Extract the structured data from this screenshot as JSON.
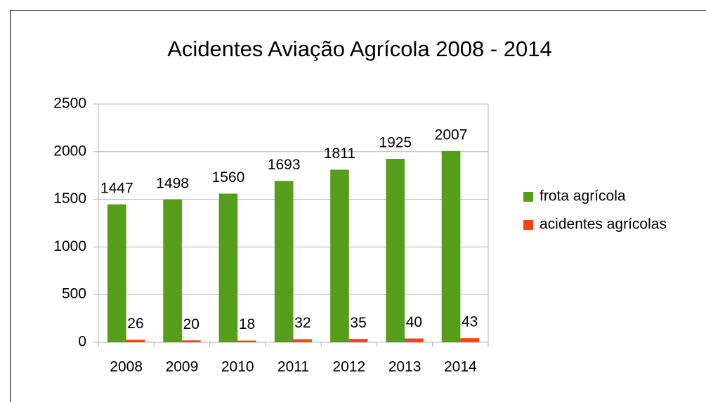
{
  "chart_data": {
    "type": "bar",
    "title": "Acidentes Aviação Agrícola 2008 - 2014",
    "categories": [
      "2008",
      "2009",
      "2010",
      "2011",
      "2012",
      "2013",
      "2014"
    ],
    "series": [
      {
        "name": "frota agrícola",
        "color": "#579d1c",
        "values": [
          1447,
          1498,
          1560,
          1693,
          1811,
          1925,
          2007
        ]
      },
      {
        "name": "acidentes agrícolas",
        "color": "#ff420e",
        "values": [
          26,
          20,
          18,
          32,
          35,
          40,
          43
        ]
      }
    ],
    "ylim": [
      0,
      2500
    ],
    "yticks": [
      0,
      500,
      1000,
      1500,
      2000,
      2500
    ],
    "grid": true,
    "legend": "right"
  }
}
